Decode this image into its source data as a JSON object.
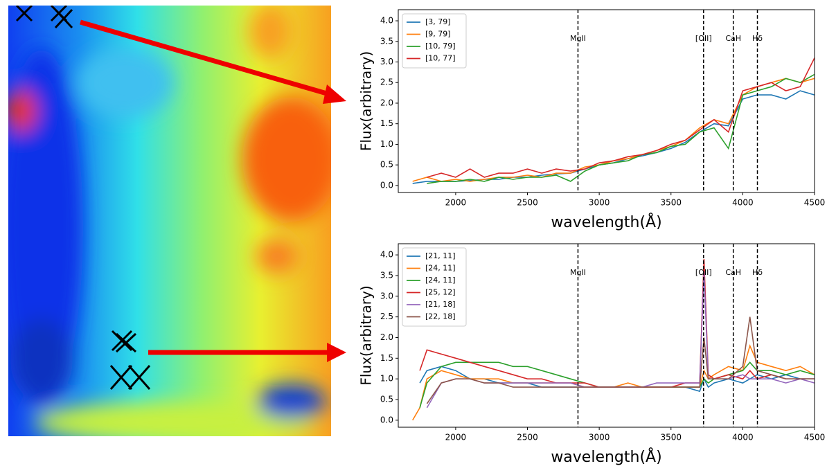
{
  "chart_data": [
    {
      "type": "line",
      "xlabel": "wavelength(Å)",
      "ylabel": "Flux(arbitrary)",
      "xlim": [
        1600,
        4500
      ],
      "ylim": [
        -0.17,
        4.27
      ],
      "xticks": [
        2000,
        2500,
        3000,
        3500,
        4000,
        4500
      ],
      "yticks": [
        {
          "value": 0,
          "label": "0.0"
        },
        0.5,
        {
          "value": 1,
          "label": "1.0"
        },
        1.5,
        {
          "value": 2,
          "label": "2.0"
        },
        2.5,
        {
          "value": 3,
          "label": "3.0"
        },
        3.5,
        {
          "value": 4,
          "label": "4.0"
        }
      ],
      "legend": "upper left",
      "vlines": [
        {
          "x": 2852,
          "label": "MgII"
        },
        {
          "x": 3727,
          "label": "[OII]"
        },
        {
          "x": 3934,
          "label": "CaH"
        },
        {
          "x": 4102,
          "label": "Hδ"
        }
      ],
      "x": [
        1700,
        1800,
        1900,
        2000,
        2100,
        2200,
        2300,
        2400,
        2500,
        2600,
        2700,
        2800,
        2900,
        3000,
        3100,
        3200,
        3300,
        3400,
        3500,
        3600,
        3700,
        3800,
        3900,
        4000,
        4100,
        4200,
        4300,
        4400,
        4500
      ],
      "series": [
        {
          "name": "[3, 79]",
          "color": "#1f77b4",
          "values": [
            0.05,
            0.1,
            0.1,
            0.1,
            0.12,
            0.15,
            0.15,
            0.2,
            0.2,
            0.25,
            0.28,
            0.3,
            0.4,
            0.5,
            0.55,
            0.65,
            0.72,
            0.8,
            0.9,
            1.05,
            1.3,
            1.5,
            1.45,
            2.1,
            2.2,
            2.2,
            2.1,
            2.3,
            2.2
          ]
        },
        {
          "name": "[9, 79]",
          "color": "#ff7f0e",
          "values": [
            0.1,
            0.2,
            0.1,
            0.15,
            0.1,
            0.15,
            0.2,
            0.2,
            0.25,
            0.2,
            0.3,
            0.3,
            0.45,
            0.5,
            0.6,
            0.65,
            0.75,
            0.85,
            0.95,
            1.1,
            1.4,
            1.6,
            1.5,
            2.2,
            2.4,
            2.5,
            2.6,
            2.5,
            2.6
          ]
        },
        {
          "name": "[10, 79]",
          "color": "#2ca02c",
          "values": [
            null,
            0.05,
            0.1,
            0.1,
            0.15,
            0.1,
            0.2,
            0.15,
            0.2,
            0.2,
            0.25,
            0.1,
            0.35,
            0.5,
            0.55,
            0.6,
            0.75,
            0.8,
            0.95,
            1.0,
            1.3,
            1.4,
            0.9,
            2.2,
            2.3,
            2.4,
            2.6,
            2.5,
            2.7
          ]
        },
        {
          "name": "[10, 77]",
          "color": "#d62728",
          "values": [
            null,
            0.2,
            0.3,
            0.2,
            0.4,
            0.2,
            0.3,
            0.3,
            0.4,
            0.3,
            0.4,
            0.35,
            0.4,
            0.55,
            0.6,
            0.7,
            0.75,
            0.85,
            1.0,
            1.1,
            1.35,
            1.6,
            1.3,
            2.3,
            2.4,
            2.5,
            2.3,
            2.4,
            3.1
          ]
        }
      ]
    },
    {
      "type": "line",
      "xlabel": "wavelength(Å)",
      "ylabel": "Flux(arbitrary)",
      "xlim": [
        1600,
        4500
      ],
      "ylim": [
        -0.17,
        4.27
      ],
      "xticks": [
        2000,
        2500,
        3000,
        3500,
        4000,
        4500
      ],
      "yticks": [
        {
          "value": 0,
          "label": "0.0"
        },
        0.5,
        {
          "value": 1,
          "label": "1.0"
        },
        1.5,
        {
          "value": 2,
          "label": "2.0"
        },
        2.5,
        {
          "value": 3,
          "label": "3.0"
        },
        3.5,
        {
          "value": 4,
          "label": "4.0"
        }
      ],
      "legend": "upper left",
      "vlines": [
        {
          "x": 2852,
          "label": "MgII"
        },
        {
          "x": 3727,
          "label": "[OII]"
        },
        {
          "x": 3934,
          "label": "CaH"
        },
        {
          "x": 4102,
          "label": "Hδ"
        }
      ],
      "x": [
        1700,
        1750,
        1800,
        1900,
        2000,
        2100,
        2200,
        2300,
        2400,
        2500,
        2600,
        2700,
        2800,
        2900,
        3000,
        3100,
        3200,
        3300,
        3400,
        3500,
        3600,
        3700,
        3730,
        3760,
        3800,
        3900,
        4000,
        4050,
        4100,
        4200,
        4300,
        4400,
        4500
      ],
      "series": [
        {
          "name": "[21, 11]",
          "color": "#1f77b4",
          "values": [
            null,
            0.9,
            1.2,
            1.3,
            1.2,
            1.0,
            1.0,
            0.9,
            0.9,
            0.9,
            0.8,
            0.8,
            0.8,
            0.8,
            0.8,
            0.8,
            0.8,
            0.8,
            0.8,
            0.8,
            0.8,
            0.7,
            1.0,
            0.8,
            0.9,
            1.0,
            0.9,
            1.0,
            1.1,
            1.0,
            1.1,
            1.0,
            1.0
          ]
        },
        {
          "name": "[24, 11]",
          "color": "#ff7f0e",
          "values": [
            0.0,
            0.3,
            1.0,
            1.2,
            1.1,
            1.0,
            1.0,
            1.0,
            0.9,
            0.9,
            0.9,
            0.9,
            0.9,
            0.8,
            0.8,
            0.8,
            0.9,
            0.8,
            0.8,
            0.8,
            0.8,
            0.8,
            1.2,
            1.0,
            1.1,
            1.3,
            1.2,
            1.8,
            1.4,
            1.3,
            1.2,
            1.3,
            1.1
          ]
        },
        {
          "name": "[24, 11]",
          "color": "#2ca02c",
          "values": [
            null,
            0.3,
            0.9,
            1.3,
            1.4,
            1.4,
            1.4,
            1.4,
            1.3,
            1.3,
            1.2,
            1.1,
            1.0,
            0.9,
            0.8,
            0.8,
            0.8,
            0.8,
            0.8,
            0.8,
            0.8,
            0.8,
            1.0,
            0.9,
            1.0,
            1.1,
            1.2,
            1.4,
            1.2,
            1.2,
            1.1,
            1.2,
            1.1
          ]
        },
        {
          "name": "[25, 12]",
          "color": "#d62728",
          "values": [
            null,
            1.2,
            1.7,
            1.6,
            1.5,
            1.4,
            1.3,
            1.2,
            1.1,
            1.0,
            1.0,
            0.9,
            0.9,
            0.9,
            0.8,
            0.8,
            0.8,
            0.8,
            0.8,
            0.8,
            0.9,
            0.9,
            3.9,
            1.1,
            1.0,
            1.1,
            1.0,
            1.2,
            1.0,
            1.1,
            1.0,
            1.0,
            1.0
          ]
        },
        {
          "name": "[21, 18]",
          "color": "#9467bd",
          "values": [
            null,
            null,
            0.3,
            0.9,
            1.0,
            1.0,
            0.9,
            0.9,
            0.9,
            0.9,
            0.9,
            0.9,
            0.9,
            0.8,
            0.8,
            0.8,
            0.8,
            0.8,
            0.9,
            0.9,
            0.9,
            0.9,
            3.6,
            1.0,
            1.0,
            1.0,
            1.1,
            1.0,
            1.0,
            1.0,
            0.9,
            1.0,
            0.9
          ]
        },
        {
          "name": "[22, 18]",
          "color": "#8c564b",
          "values": [
            null,
            null,
            0.4,
            0.9,
            1.0,
            1.0,
            0.9,
            0.9,
            0.8,
            0.8,
            0.8,
            0.8,
            0.8,
            0.8,
            0.8,
            0.8,
            0.8,
            0.8,
            0.8,
            0.8,
            0.8,
            0.8,
            2.0,
            1.0,
            1.0,
            1.0,
            1.3,
            2.5,
            1.2,
            1.1,
            1.0,
            1.0,
            1.0
          ]
        }
      ]
    }
  ]
}
